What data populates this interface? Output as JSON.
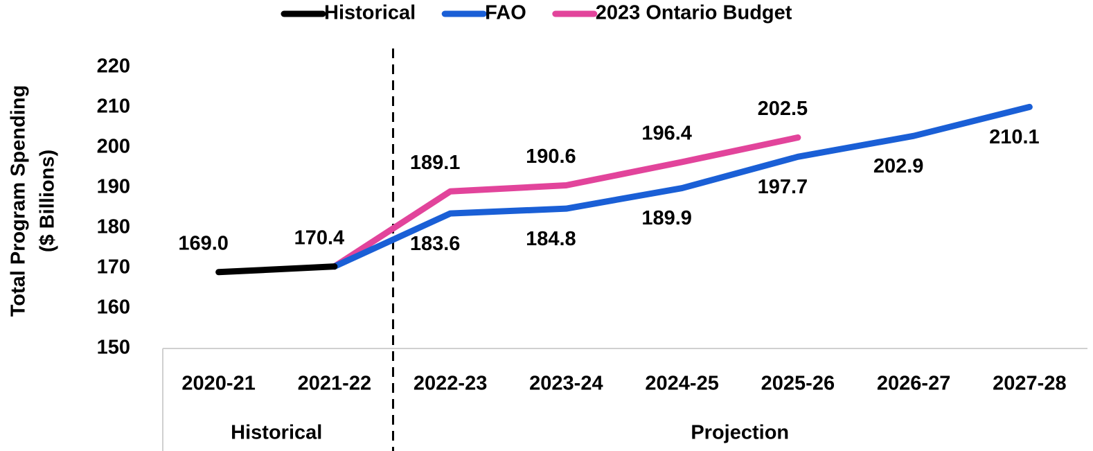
{
  "chart_data": {
    "type": "line",
    "y_label": [
      "Total Program Spending",
      "($ Billions)"
    ],
    "categories": [
      "2020-21",
      "2021-22",
      "2022-23",
      "2023-24",
      "2024-25",
      "2025-26",
      "2026-27",
      "2027-28"
    ],
    "category_groups": [
      {
        "label": "Historical",
        "count": 2
      },
      {
        "label": "Projection",
        "count": 6
      }
    ],
    "series": [
      {
        "name": "Historical",
        "color": "#000000",
        "values": [
          169.0,
          170.4,
          null,
          null,
          null,
          null,
          null,
          null
        ],
        "value_labels": [
          "169.0",
          "170.4",
          null,
          null,
          null,
          null,
          null,
          null
        ],
        "label_position": "above"
      },
      {
        "name": "FAO",
        "color": "#1a5fd6",
        "values": [
          null,
          170.4,
          183.6,
          184.8,
          189.9,
          197.7,
          202.9,
          210.1
        ],
        "value_labels": [
          null,
          null,
          "183.6",
          "184.8",
          "189.9",
          "197.7",
          "202.9",
          "210.1"
        ],
        "label_position": "below"
      },
      {
        "name": "2023 Ontario Budget",
        "color": "#e2449b",
        "values": [
          null,
          170.4,
          189.1,
          190.6,
          196.4,
          202.5,
          null,
          null
        ],
        "value_labels": [
          null,
          null,
          "189.1",
          "190.6",
          "196.4",
          "202.5",
          null,
          null
        ],
        "label_position": "above"
      }
    ],
    "ylim": [
      150,
      220
    ],
    "yticks": [
      150,
      160,
      170,
      180,
      190,
      200,
      210,
      220
    ],
    "grid": false,
    "legend": "top"
  }
}
